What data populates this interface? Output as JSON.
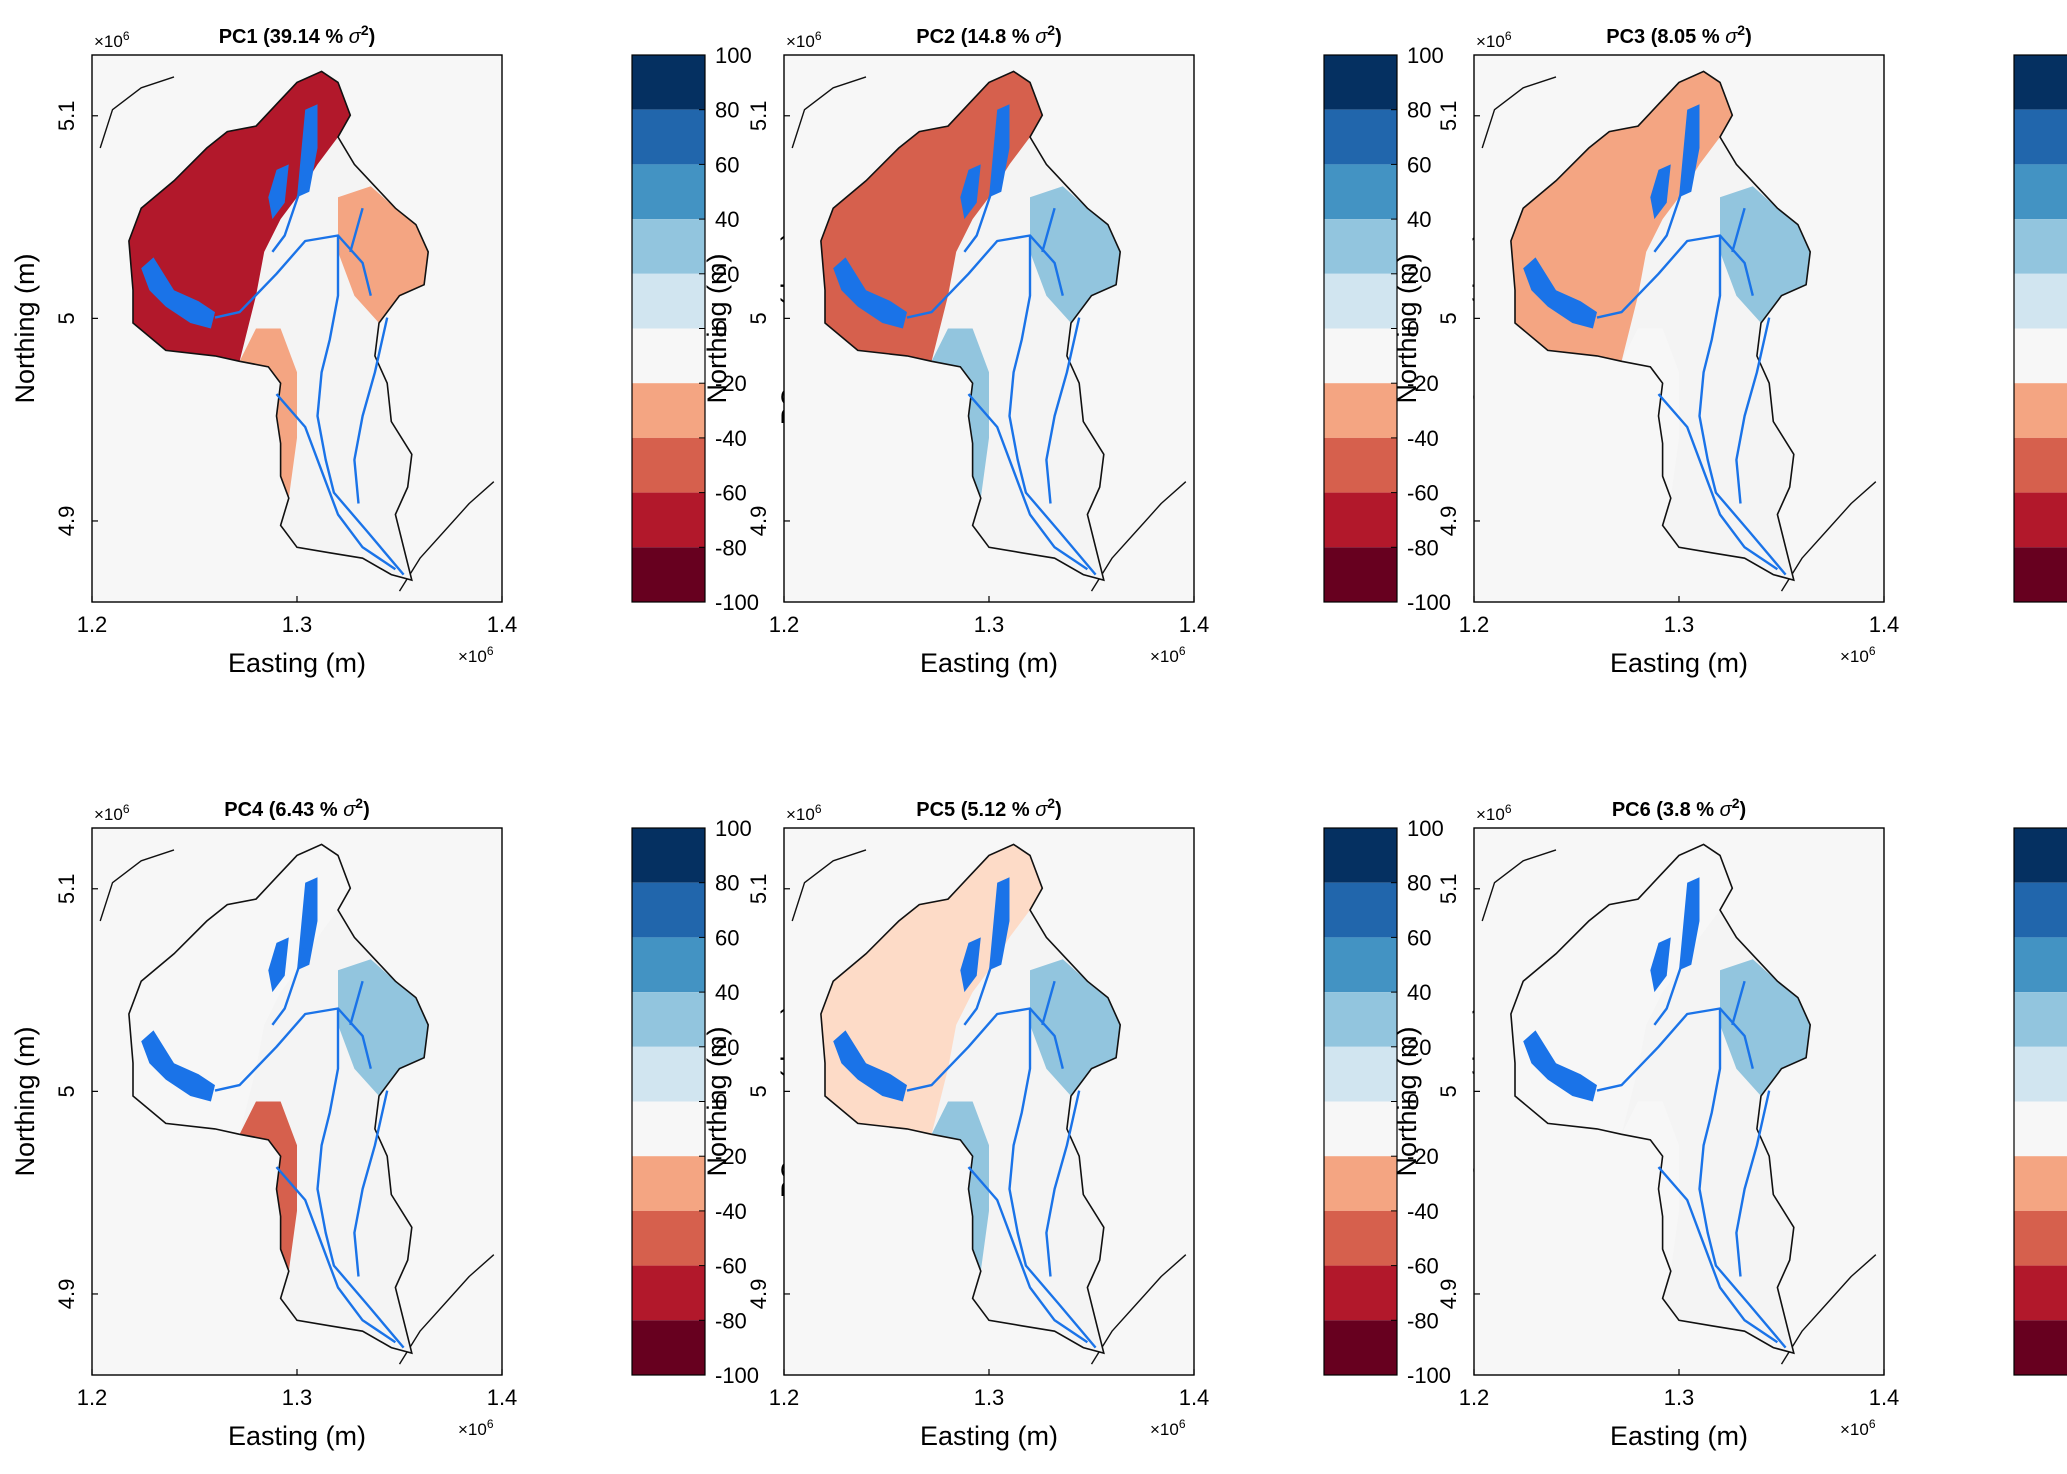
{
  "figure": {
    "rows": 2,
    "cols": 3
  },
  "colors": {
    "plot_background": "#f7f7f7",
    "outline": "#111111",
    "river": "#1a73e8",
    "colorbar": [
      "#67001f",
      "#b2182b",
      "#d6604d",
      "#f4a582",
      "#fddbc7",
      "#f7f7f7",
      "#d1e5f0",
      "#92c5de",
      "#4393c3",
      "#2166ac",
      "#053061"
    ]
  },
  "chart_data": [
    {
      "type": "heatmap",
      "title_main": "PC1 (39.14 % ",
      "title_sigma": "σ",
      "title_sup": "2",
      "title_close": ")",
      "xlabel": "Easting (m)",
      "ylabel": "Northing (m)",
      "xlim": [
        1200000,
        1400000
      ],
      "ylim": [
        4860000,
        5130000
      ],
      "x_ticks": [
        1.2,
        1.3,
        1.4
      ],
      "y_ticks": [
        4.9,
        5,
        5.1
      ],
      "x_exponent": "×10",
      "y_exponent": "×10",
      "exponent_power": "6",
      "colorbar": {
        "label": "PC score (days)",
        "min": -100,
        "max": 100,
        "step": 20,
        "ticks": [
          "100",
          "80",
          "60",
          "40",
          "20",
          "0",
          "-20",
          "-40",
          "-60",
          "-80",
          "-100"
        ]
      },
      "variance_percent": 39.14,
      "west_score": -70,
      "south_score": -30,
      "east_score": -40
    },
    {
      "type": "heatmap",
      "title_main": "PC2 (14.8 % ",
      "title_sigma": "σ",
      "title_sup": "2",
      "title_close": ")",
      "xlabel": "Easting (m)",
      "ylabel": "Northing (m)",
      "xlim": [
        1200000,
        1400000
      ],
      "ylim": [
        4860000,
        5130000
      ],
      "x_ticks": [
        1.2,
        1.3,
        1.4
      ],
      "y_ticks": [
        4.9,
        5,
        5.1
      ],
      "x_exponent": "×10",
      "y_exponent": "×10",
      "exponent_power": "6",
      "colorbar": {
        "label": "PC score (days)",
        "min": -100,
        "max": 100,
        "step": 20,
        "ticks": [
          "100",
          "80",
          "60",
          "40",
          "20",
          "0",
          "-20",
          "-40",
          "-60",
          "-80",
          "-100"
        ]
      },
      "variance_percent": 14.8,
      "west_score": -45,
      "south_score": 35,
      "east_score": 35
    },
    {
      "type": "heatmap",
      "title_main": "PC3 (8.05 % ",
      "title_sigma": "σ",
      "title_sup": "2",
      "title_close": ")",
      "xlabel": "Easting (m)",
      "ylabel": "Northing (m)",
      "xlim": [
        1200000,
        1400000
      ],
      "ylim": [
        4860000,
        5130000
      ],
      "x_ticks": [
        1.2,
        1.3,
        1.4
      ],
      "y_ticks": [
        4.9,
        5,
        5.1
      ],
      "x_exponent": "×10",
      "y_exponent": "×10",
      "exponent_power": "6",
      "colorbar": {
        "label": "PC score (days)",
        "min": -100,
        "max": 100,
        "step": 20,
        "ticks": [
          "100",
          "80",
          "60",
          "40",
          "20",
          "0",
          "-20",
          "-40",
          "-60",
          "-80",
          "-100"
        ]
      },
      "variance_percent": 8.05,
      "west_score": -25,
      "south_score": -15,
      "east_score": 25
    },
    {
      "type": "heatmap",
      "title_main": "PC4 (6.43 % ",
      "title_sigma": "σ",
      "title_sup": "2",
      "title_close": ")",
      "xlabel": "Easting (m)",
      "ylabel": "Northing (m)",
      "xlim": [
        1200000,
        1400000
      ],
      "ylim": [
        4860000,
        5130000
      ],
      "x_ticks": [
        1.2,
        1.3,
        1.4
      ],
      "y_ticks": [
        4.9,
        5,
        5.1
      ],
      "x_exponent": "×10",
      "y_exponent": "×10",
      "exponent_power": "6",
      "colorbar": {
        "label": "PC score (days)",
        "min": -100,
        "max": 100,
        "step": 20,
        "ticks": [
          "100",
          "80",
          "60",
          "40",
          "20",
          "0",
          "-20",
          "-40",
          "-60",
          "-80",
          "-100"
        ]
      },
      "variance_percent": 6.43,
      "west_score": 15,
      "south_score": -45,
      "east_score": 20
    },
    {
      "type": "heatmap",
      "title_main": "PC5 (5.12 % ",
      "title_sigma": "σ",
      "title_sup": "2",
      "title_close": ")",
      "xlabel": "Easting (m)",
      "ylabel": "Northing (m)",
      "xlim": [
        1200000,
        1400000
      ],
      "ylim": [
        4860000,
        5130000
      ],
      "x_ticks": [
        1.2,
        1.3,
        1.4
      ],
      "y_ticks": [
        4.9,
        5,
        5.1
      ],
      "x_exponent": "×10",
      "y_exponent": "×10",
      "exponent_power": "6",
      "colorbar": {
        "label": "PC score (days)",
        "min": -100,
        "max": 100,
        "step": 20,
        "ticks": [
          "100",
          "80",
          "60",
          "40",
          "20",
          "0",
          "-20",
          "-40",
          "-60",
          "-80",
          "-100"
        ]
      },
      "variance_percent": 5.12,
      "west_score": -20,
      "south_score": 25,
      "east_score": 20
    },
    {
      "type": "heatmap",
      "title_main": "PC6 (3.8 % ",
      "title_sigma": "σ",
      "title_sup": "2",
      "title_close": ")",
      "xlabel": "Easting (m)",
      "ylabel": "Northing (m)",
      "xlim": [
        1200000,
        1400000
      ],
      "ylim": [
        4860000,
        5130000
      ],
      "x_ticks": [
        1.2,
        1.3,
        1.4
      ],
      "y_ticks": [
        4.9,
        5,
        5.1
      ],
      "x_exponent": "×10",
      "y_exponent": "×10",
      "exponent_power": "6",
      "colorbar": {
        "label": "PC score (days)",
        "min": -100,
        "max": 100,
        "step": 20,
        "ticks": [
          "100",
          "80",
          "60",
          "40",
          "20",
          "0",
          "-20",
          "-40",
          "-60",
          "-80",
          "-100"
        ]
      },
      "variance_percent": 3.8,
      "west_score": -15,
      "south_score": 15,
      "east_score": 20
    }
  ]
}
